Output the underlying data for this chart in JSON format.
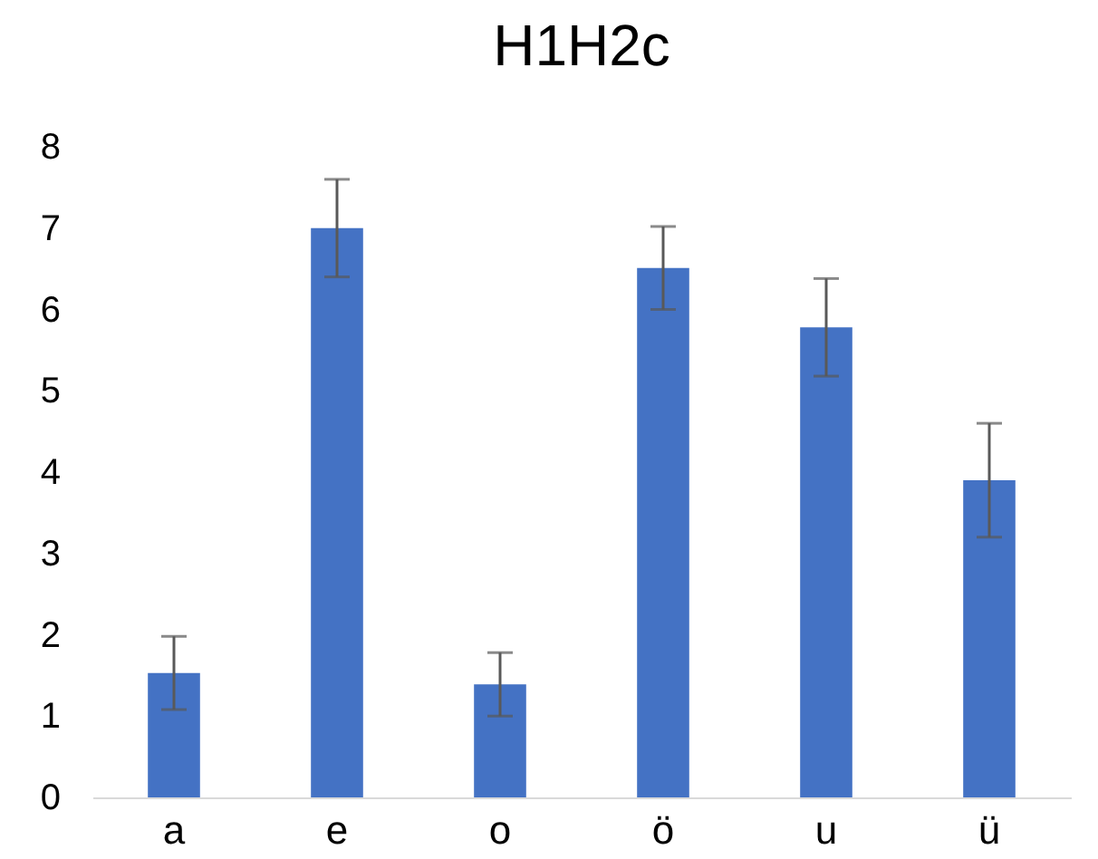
{
  "chart_data": {
    "type": "bar",
    "title": "H1H2c",
    "categories": [
      "a",
      "e",
      "o",
      "ö",
      "u",
      "ü"
    ],
    "values": [
      1.53,
      7.0,
      1.39,
      6.51,
      5.78,
      3.9
    ],
    "errors": [
      0.45,
      0.6,
      0.39,
      0.51,
      0.6,
      0.7
    ],
    "color": "#4472c4",
    "ylim": [
      0,
      8
    ],
    "yticks": [
      0,
      1,
      2,
      3,
      4,
      5,
      6,
      7,
      8
    ],
    "grid": false
  }
}
